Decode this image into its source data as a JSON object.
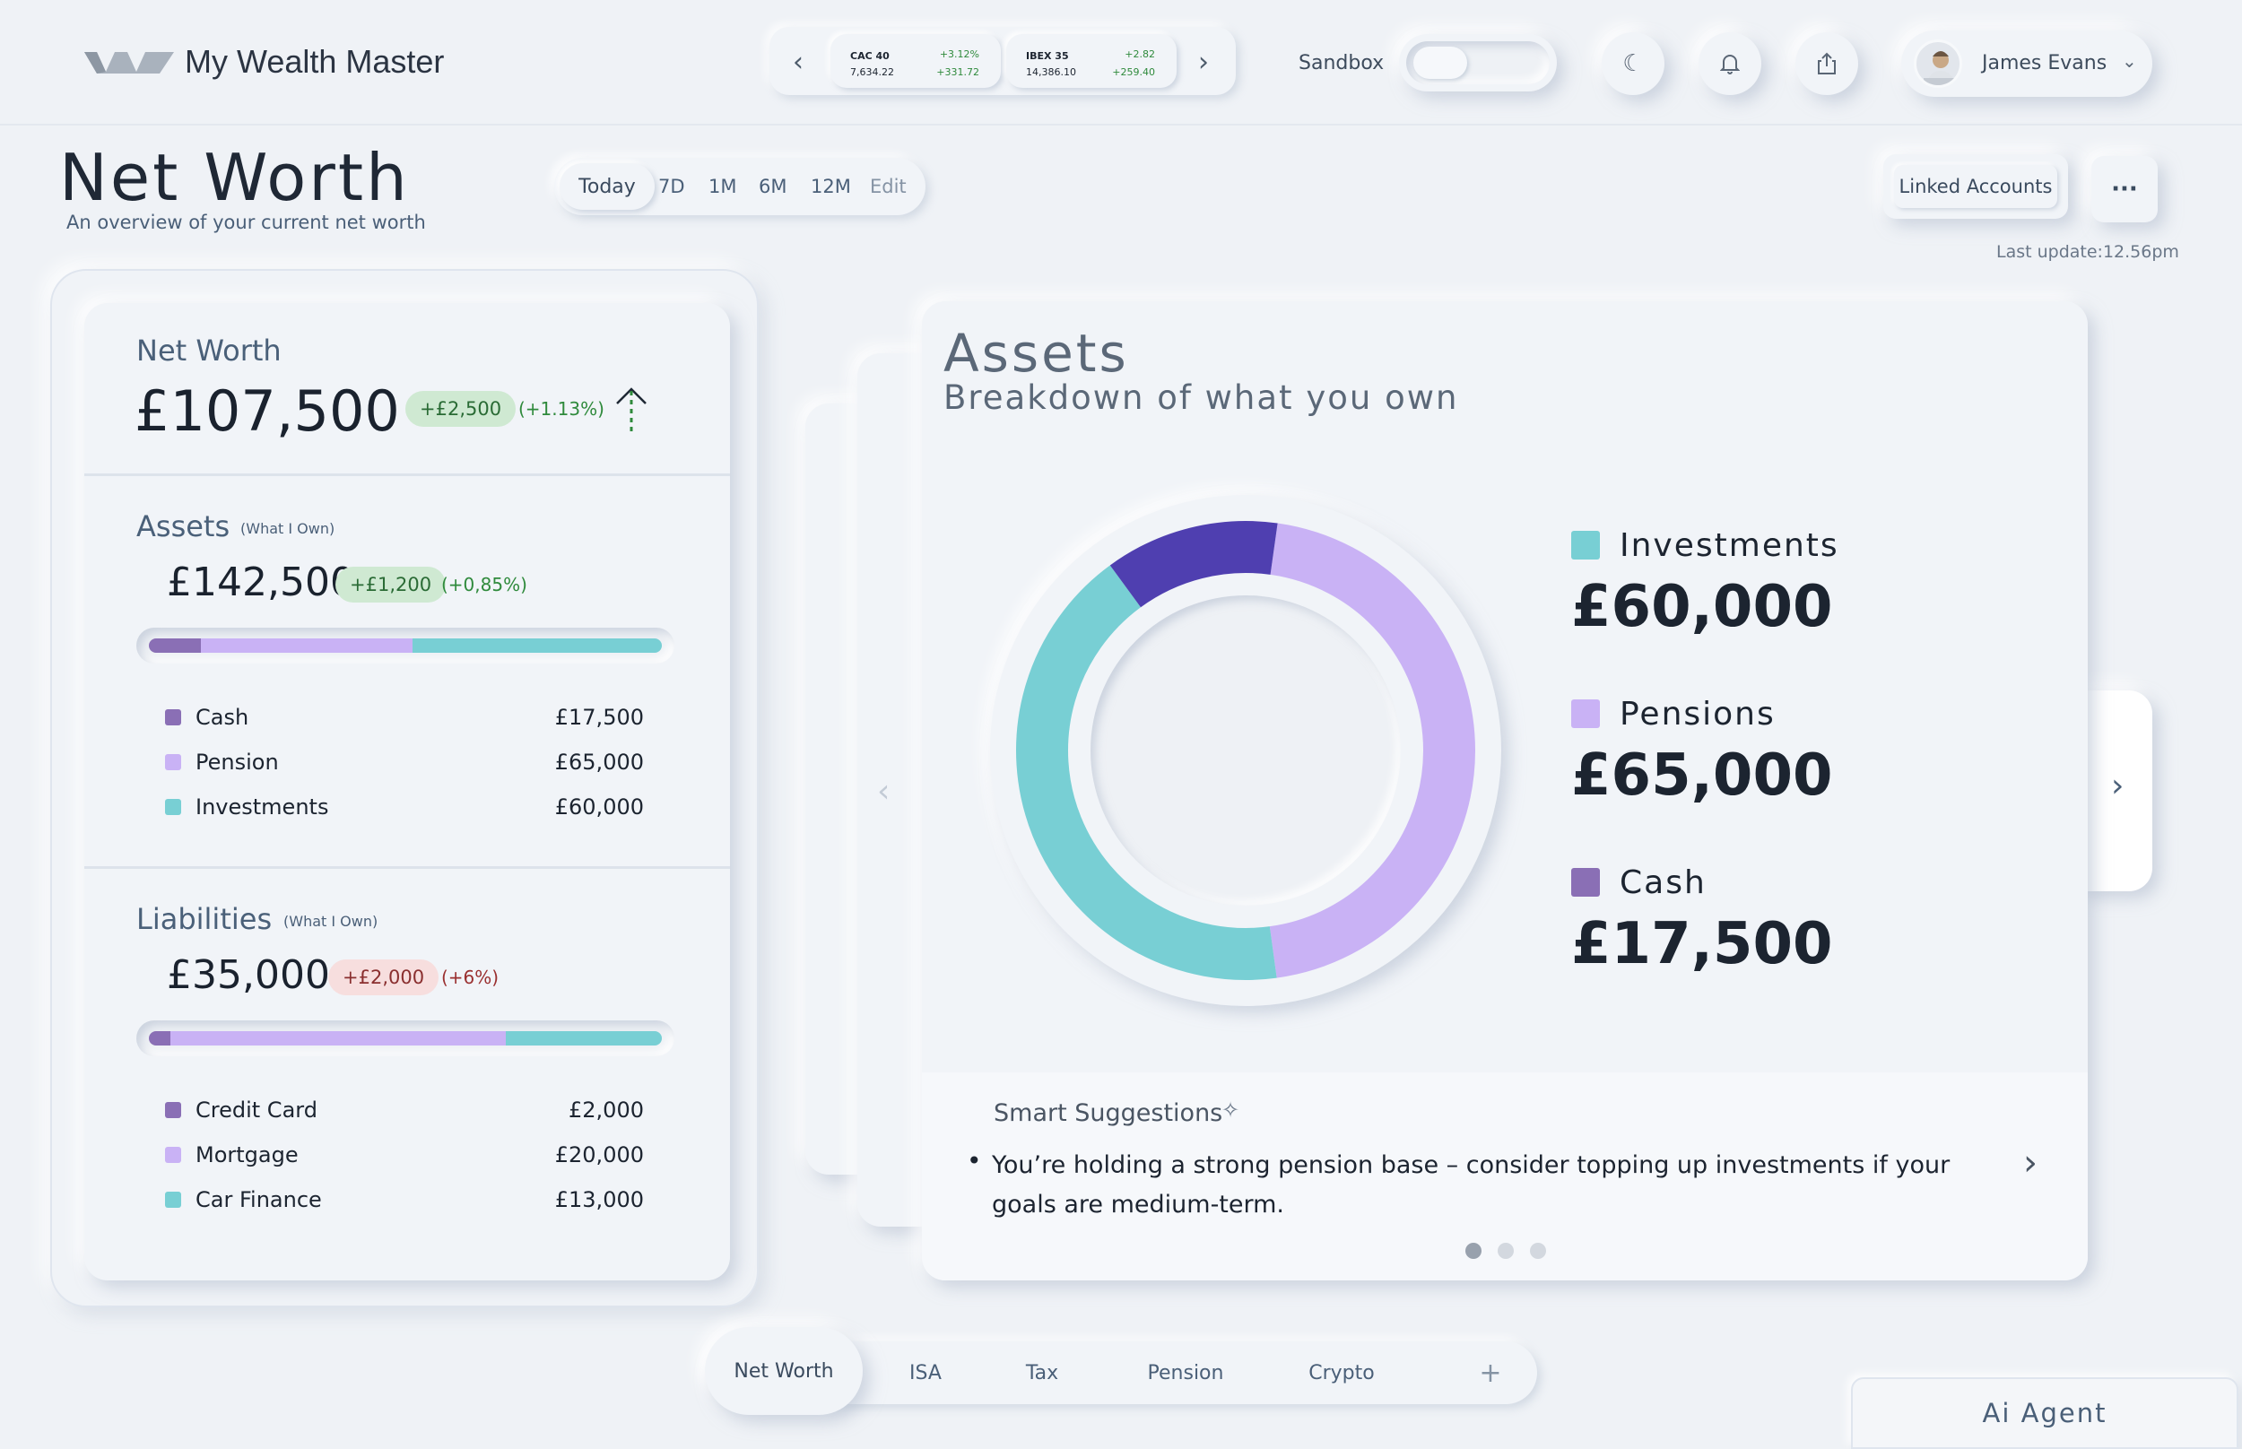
{
  "app": {
    "title": "My Wealth Master"
  },
  "ticker": {
    "items": [
      {
        "name": "CAC 40",
        "value": "7,634.22",
        "pct": "+3.12%",
        "change": "+331.72"
      },
      {
        "name": "IBEX 35",
        "value": "14,386.10",
        "pct": "+2.82",
        "change": "+259.40"
      }
    ]
  },
  "header": {
    "sandbox_label": "Sandbox",
    "user_name": "James Evans"
  },
  "page": {
    "title": "Net Worth",
    "subtitle": "An overview of your current net worth",
    "last_update": "Last update:12.56pm"
  },
  "range_tabs": [
    "Today",
    "7D",
    "1M",
    "6M",
    "12M",
    "Edit"
  ],
  "actions": {
    "linked_accounts": "Linked Accounts",
    "more": "···"
  },
  "summary": {
    "net_worth": {
      "label": "Net Worth",
      "value": "£107,500",
      "change": "+£2,500",
      "pct": "(+1.13%)"
    },
    "assets": {
      "label": "Assets",
      "note": "(What I Own)",
      "value": "£142,500",
      "change": "+£1,200",
      "pct": "(+0,85%)",
      "items": [
        {
          "name": "Cash",
          "value": "£17,500",
          "color": "#8a6fb5"
        },
        {
          "name": "Pension",
          "value": "£65,000",
          "color": "#c9b2f5"
        },
        {
          "name": "Investments",
          "value": "£60,000",
          "color": "#78cfd4"
        }
      ]
    },
    "liabilities": {
      "label": "Liabilities",
      "note": "(What I Own)",
      "value": "£35,000",
      "change": "+£2,000",
      "pct": "(+6%)",
      "items": [
        {
          "name": "Credit Card",
          "value": "£2,000",
          "color": "#8a6fb5"
        },
        {
          "name": "Mortgage",
          "value": "£20,000",
          "color": "#c9b2f5"
        },
        {
          "name": "Car Finance",
          "value": "£13,000",
          "color": "#78cfd4"
        }
      ]
    }
  },
  "assets_card": {
    "title": "Assets",
    "subtitle": "Breakdown of what you own",
    "legend": [
      {
        "name": "Investments",
        "value": "£60,000",
        "color": "#78cfd4"
      },
      {
        "name": "Pensions",
        "value": "£65,000",
        "color": "#c9b2f5"
      },
      {
        "name": "Cash",
        "value": "£17,500",
        "color": "#8a6fb5"
      }
    ]
  },
  "chart_data": {
    "type": "pie",
    "categories": [
      "Pensions",
      "Investments",
      "Cash"
    ],
    "values": [
      65000,
      60000,
      17500
    ],
    "colors": [
      "#c9b2f5",
      "#78cfd4",
      "#4f3fb0"
    ]
  },
  "suggestions": {
    "title": "Smart Suggestions",
    "text": "You’re holding a strong pension base – consider topping up investments if your goals are medium-term."
  },
  "bottom_tabs": [
    "Net Worth",
    "ISA",
    "Tax",
    "Pension",
    "Crypto"
  ],
  "ai_agent": {
    "label": "Ai Agent"
  }
}
